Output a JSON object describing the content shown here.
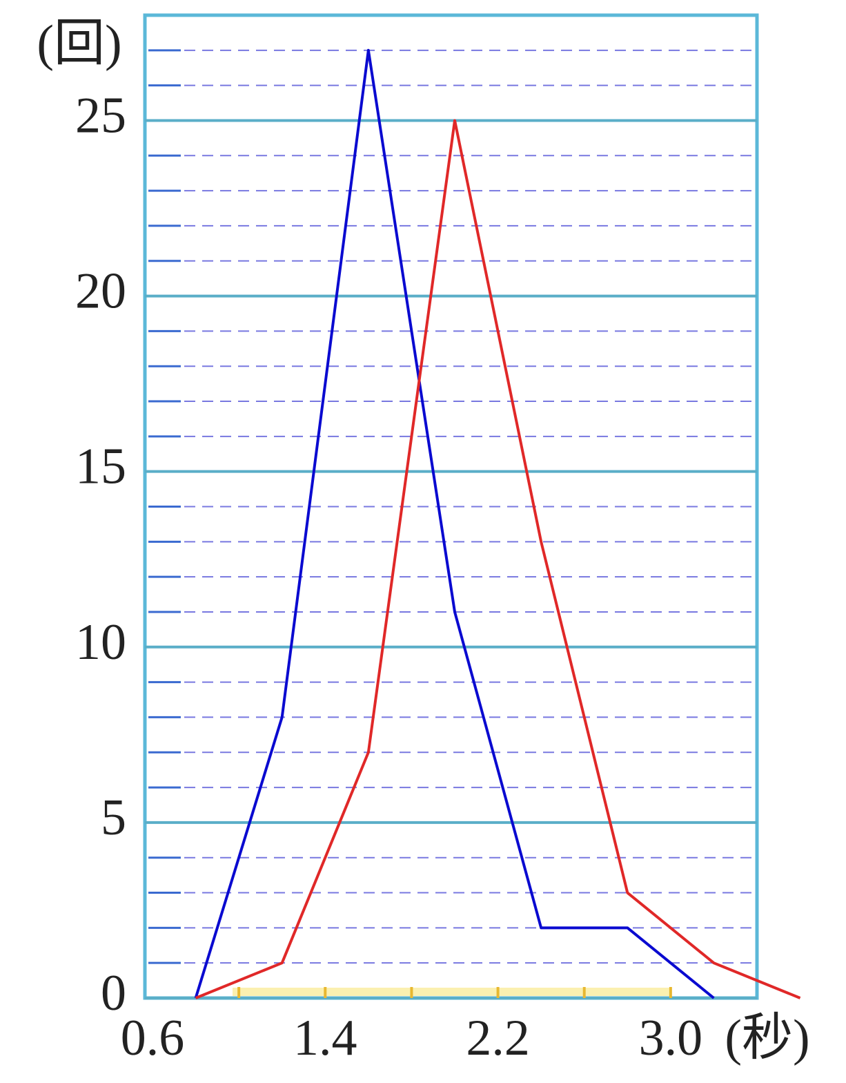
{
  "chart_data": {
    "type": "line",
    "y_unit": "(回)",
    "x_unit": "(秒)",
    "x": [
      0.8,
      1.2,
      1.6,
      2.0,
      2.4,
      2.8,
      3.2,
      3.6
    ],
    "series": [
      {
        "name": null,
        "color": "#0a0ad0",
        "values": [
          0,
          8,
          27,
          11,
          2,
          2,
          0,
          null
        ]
      },
      {
        "name": null,
        "color": "#e02828",
        "values": [
          0,
          1,
          7,
          25,
          13,
          3,
          1,
          0
        ]
      }
    ],
    "xlim": [
      0.6,
      3.4
    ],
    "ylim": [
      0,
      28
    ],
    "xticks": [
      0.6,
      1.4,
      2.2,
      {
        "value": 3,
        "label": "3.0"
      }
    ],
    "x_minor_ticks": [
      1.0,
      1.8,
      2.6
    ],
    "yticks": [
      0,
      5,
      10,
      15,
      20,
      25
    ],
    "y_minor_ticks": [
      1,
      2,
      3,
      4,
      6,
      7,
      8,
      9,
      11,
      12,
      13,
      14,
      16,
      17,
      18,
      19,
      21,
      22,
      23,
      24,
      26,
      27
    ],
    "grid": true
  }
}
